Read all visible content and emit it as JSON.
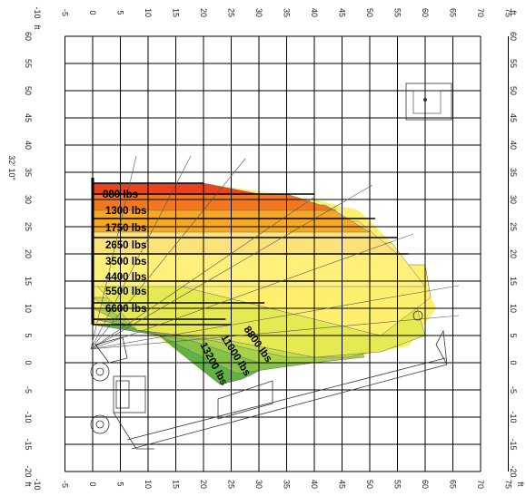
{
  "units": {
    "top_left": "ft",
    "top_right": "ft",
    "bottom_left": "ft",
    "bottom_right": "ft"
  },
  "axes": {
    "x_ticks": [
      -10,
      -5,
      0,
      5,
      10,
      15,
      20,
      25,
      30,
      35,
      40,
      45,
      50,
      55,
      60,
      65,
      70,
      75
    ],
    "y_ticks": [
      60,
      55,
      50,
      45,
      40,
      35,
      30,
      25,
      20,
      15,
      10,
      5,
      0,
      -5,
      -10,
      -15,
      -20
    ],
    "max_height_label": "32' 10\""
  },
  "load_zones": [
    {
      "label": "880 lbs",
      "color": "#e8431f"
    },
    {
      "label": "1300 lbs",
      "color": "#f2771f"
    },
    {
      "label": "1750 lbs",
      "color": "#f7a823"
    },
    {
      "label": "2650 lbs",
      "color": "#fbe27a"
    },
    {
      "label": "3500 lbs",
      "color": "#fef07a"
    },
    {
      "label": "4400 lbs",
      "color": "#fef06e"
    },
    {
      "label": "5500 lbs",
      "color": "#e5ea52"
    },
    {
      "label": "6600 lbs",
      "color": "#c7de4b"
    },
    {
      "label": "8800 lbs",
      "color": "#a9d24a"
    },
    {
      "label": "11000 lbs",
      "color": "#86c448"
    },
    {
      "label": "13200 lbs",
      "color": "#5fb344"
    }
  ]
}
